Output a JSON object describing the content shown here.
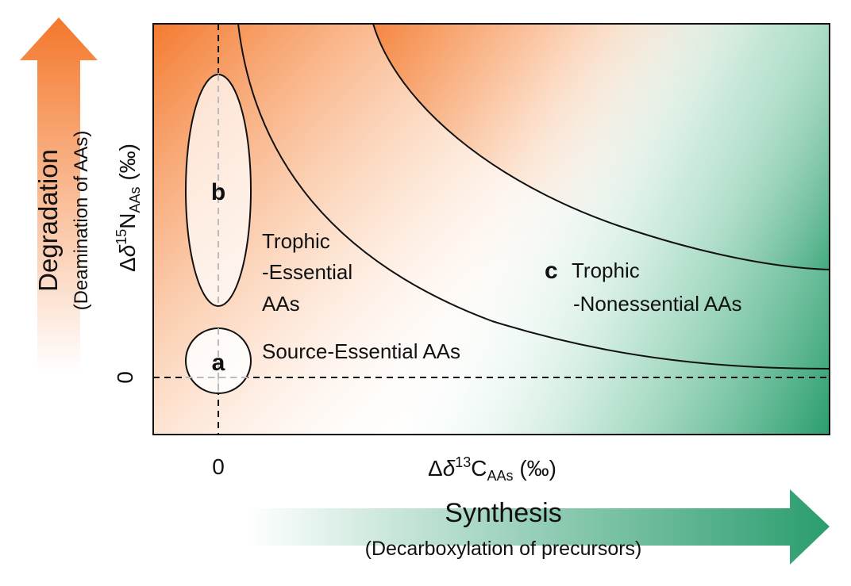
{
  "axes": {
    "x_label_prefix": "Δ",
    "x_label_delta": "δ",
    "x_label_sup": "13",
    "x_label_main": "C",
    "x_label_sub": "AAs",
    "x_label_unit": " (‰)",
    "y_label_prefix": "Δ",
    "y_label_delta": "δ",
    "y_label_sup": "15",
    "y_label_main": "N",
    "y_label_sub": "AAs",
    "y_label_unit": " (‰)",
    "x_zero_tick": "0",
    "y_zero_tick": "0"
  },
  "arrows": {
    "degradation_title": "Degradation",
    "degradation_subtitle": "(Deamination of AAs)",
    "synthesis_title": "Synthesis",
    "synthesis_subtitle": "(Decarboxylation of precursors)"
  },
  "regions": {
    "a_letter": "a",
    "a_label": "Source-Essential AAs",
    "b_letter": "b",
    "b_label_line1": "Trophic",
    "b_label_line2": "-Essential",
    "b_label_line3": "AAs",
    "c_letter": "c",
    "c_label_line1": "Trophic",
    "c_label_line2": "-Nonessential AAs"
  },
  "colors": {
    "orange": "#f47a2f",
    "green": "#2a9d6e"
  }
}
